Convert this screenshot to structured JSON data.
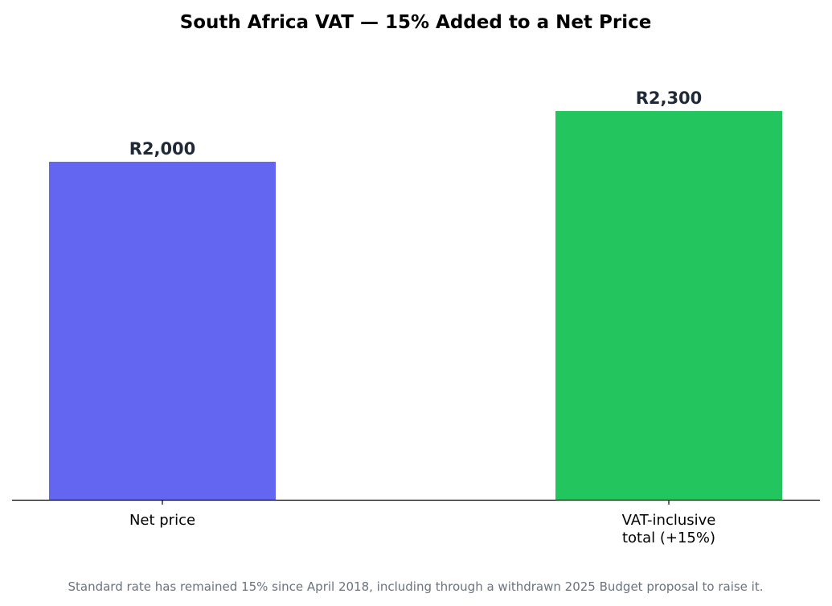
{
  "chart_data": {
    "type": "bar",
    "title": "South Africa VAT — 15% Added to a Net Price",
    "categories": [
      "Net price",
      "VAT-inclusive\ntotal (+15%)"
    ],
    "values": [
      2000,
      2300
    ],
    "value_labels": [
      "R2,000",
      "R2,300"
    ],
    "colors": [
      "#6366f1",
      "#22c55e"
    ],
    "xlabel": "",
    "ylabel": "",
    "ylim": [
      0,
      2760
    ],
    "grid": false,
    "y_axis_visible": false,
    "footnote": "Standard rate has remained 15% since April 2018, including through a withdrawn 2025 Budget proposal to raise it."
  }
}
